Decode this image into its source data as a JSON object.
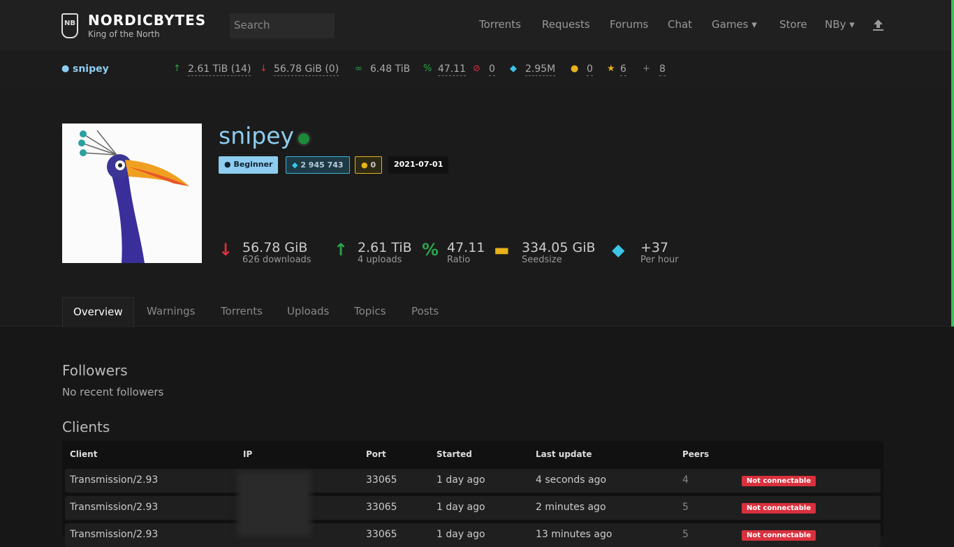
{
  "header": {
    "logo_mark": "NB",
    "site_name": "NORDICBYTES",
    "tagline": "King of the North",
    "search_placeholder": "Search",
    "nav": [
      "Torrents",
      "Requests",
      "Forums",
      "Chat",
      "Games",
      "Store",
      "NBy"
    ]
  },
  "statusbar": {
    "username": "snipey",
    "upload": "2.61 TiB (14)",
    "download": "56.78 GiB (0)",
    "buffer": "6.48 TiB",
    "ratio": "47.11",
    "hit_and_runs": "0",
    "bonus": "2.95M",
    "coins": "0",
    "stars": "6",
    "invites": "8"
  },
  "profile": {
    "name": "snipey",
    "class": "Beginner",
    "bonus": "2 945 743",
    "coins": "0",
    "joined": "2021-07-01",
    "stats": [
      {
        "value": "56.78 GiB",
        "label": "626 downloads"
      },
      {
        "value": "2.61 TiB",
        "label": "4 uploads"
      },
      {
        "value": "47.11",
        "label": "Ratio"
      },
      {
        "value": "334.05 GiB",
        "label": "Seedsize"
      },
      {
        "value": "+37",
        "label": "Per hour"
      }
    ]
  },
  "tabs": [
    "Overview",
    "Warnings",
    "Torrents",
    "Uploads",
    "Topics",
    "Posts"
  ],
  "followers": {
    "heading": "Followers",
    "text": "No recent followers"
  },
  "clients": {
    "heading": "Clients",
    "columns": [
      "Client",
      "IP",
      "Port",
      "Started",
      "Last update",
      "Peers"
    ],
    "rows": [
      {
        "client": "Transmission/2.93",
        "port": "33065",
        "started": "1 day ago",
        "last_update": "4 seconds ago",
        "peers": "4",
        "status": "Not connectable"
      },
      {
        "client": "Transmission/2.93",
        "port": "33065",
        "started": "1 day ago",
        "last_update": "2 minutes ago",
        "peers": "5",
        "status": "Not connectable"
      },
      {
        "client": "Transmission/2.93",
        "port": "33065",
        "started": "1 day ago",
        "last_update": "13 minutes ago",
        "peers": "5",
        "status": "Not connectable"
      }
    ]
  }
}
